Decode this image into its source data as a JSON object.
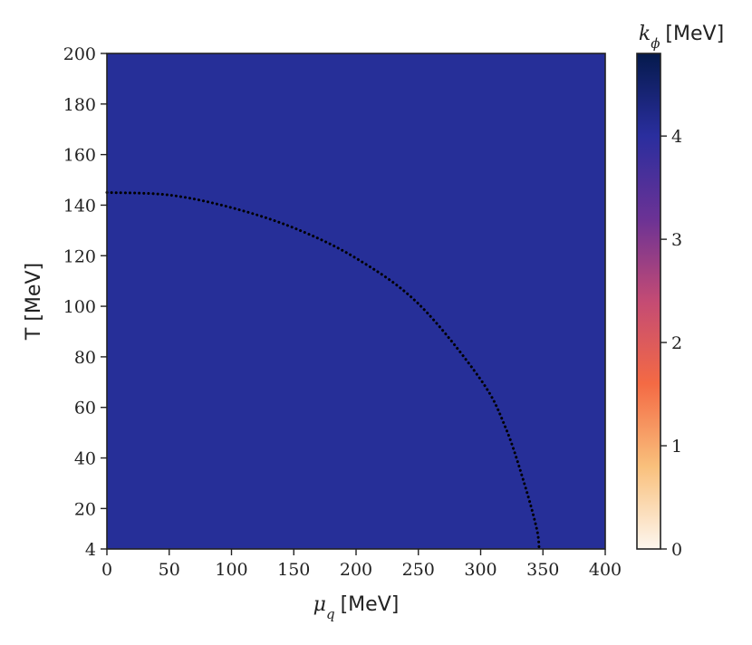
{
  "chart_data": {
    "type": "heatmap",
    "title": "",
    "xlabel_symbol": "μ",
    "xlabel_subscript": "q",
    "xlabel_unit": "[MeV]",
    "ylabel": "T [MeV]",
    "xlim": [
      0,
      400
    ],
    "ylim": [
      4,
      200
    ],
    "x_ticks": [
      0,
      50,
      100,
      150,
      200,
      250,
      300,
      350,
      400
    ],
    "y_ticks": [
      4,
      20,
      40,
      60,
      80,
      100,
      120,
      140,
      160,
      180,
      200
    ],
    "heatmap_value": 4.1,
    "colorbar": {
      "label_symbol": "k",
      "label_subscript": "ϕ",
      "label_unit": "[MeV]",
      "range": [
        0,
        4.8
      ],
      "ticks": [
        0,
        1,
        2,
        3,
        4
      ],
      "colors": [
        "#fdf6ee",
        "#f9c07c",
        "#f46a44",
        "#c44b74",
        "#6b3295",
        "#2a2e9e",
        "#051a4c"
      ]
    },
    "fill_color": "#262f98",
    "boundary_curve": {
      "style": "dotted",
      "color": "#000000",
      "x": [
        0,
        50,
        100,
        150,
        200,
        250,
        300,
        320,
        335,
        345,
        347
      ],
      "y": [
        145,
        144,
        139,
        131,
        119,
        101,
        71,
        52,
        30,
        12,
        4
      ]
    }
  }
}
